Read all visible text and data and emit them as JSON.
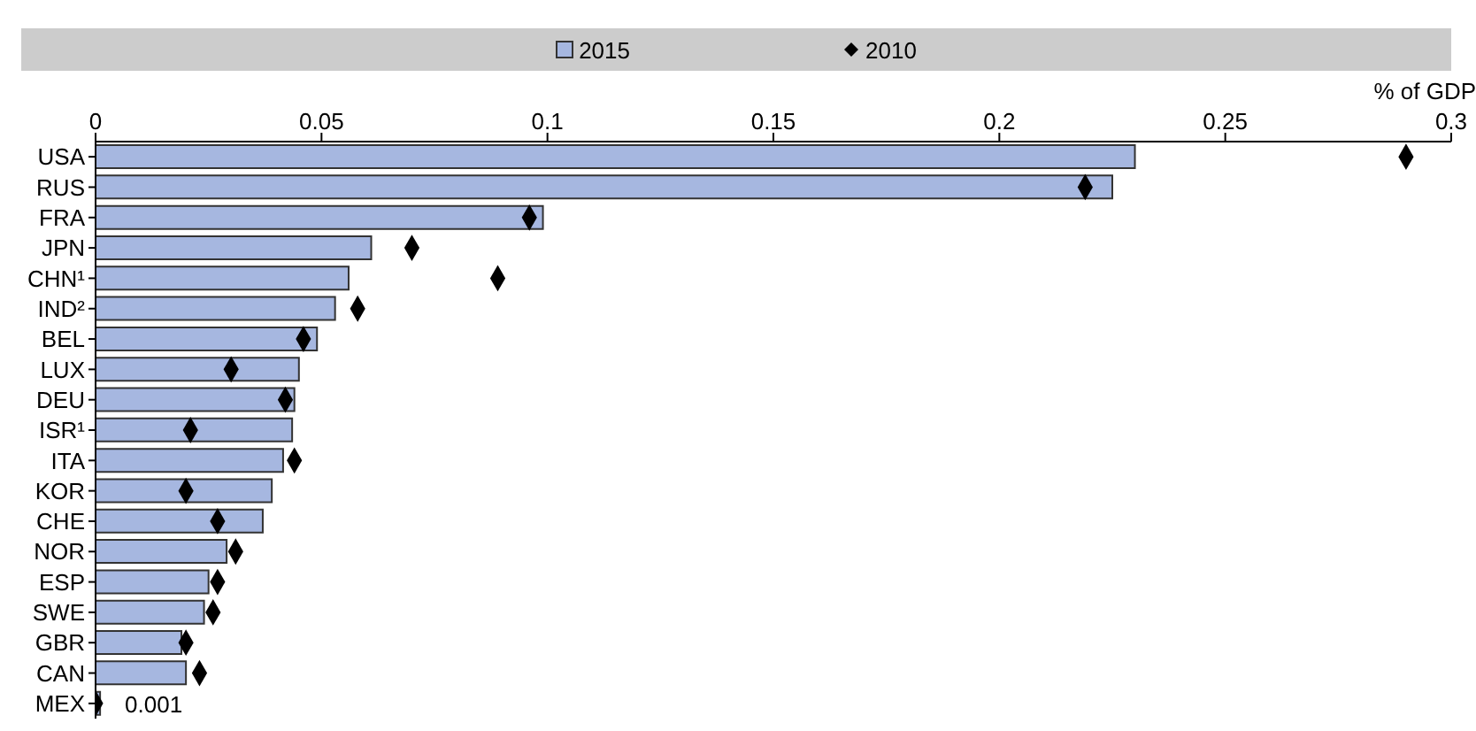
{
  "chart_data": {
    "type": "bar",
    "orientation": "horizontal",
    "xlabel": "% of GDP",
    "categories": [
      "USA",
      "RUS",
      "FRA",
      "JPN",
      "CHN¹",
      "IND²",
      "BEL",
      "LUX",
      "DEU",
      "ISR¹",
      "ITA",
      "KOR",
      "CHE",
      "NOR",
      "ESP",
      "SWE",
      "GBR",
      "CAN",
      "MEX"
    ],
    "series": [
      {
        "name": "2015",
        "color": "#a6b7e0",
        "values": [
          0.23,
          0.225,
          0.099,
          0.061,
          0.056,
          0.053,
          0.049,
          0.045,
          0.044,
          0.0435,
          0.0415,
          0.039,
          0.037,
          0.029,
          0.025,
          0.024,
          0.019,
          0.02,
          0.001
        ],
        "value_labels": [
          null,
          null,
          null,
          null,
          null,
          null,
          null,
          null,
          null,
          null,
          null,
          null,
          null,
          null,
          null,
          null,
          null,
          null,
          "0.001"
        ]
      },
      {
        "name": "2010",
        "type": "scatter",
        "color": "#000000",
        "marker": "diamond",
        "values": [
          0.29,
          0.219,
          0.096,
          0.07,
          0.089,
          0.058,
          0.046,
          0.03,
          0.042,
          0.021,
          0.044,
          0.02,
          0.027,
          0.031,
          0.027,
          0.026,
          0.02,
          0.023,
          0
        ]
      }
    ],
    "xlim": [
      0,
      0.3
    ],
    "xticks": [
      0,
      0.05,
      0.1,
      0.15,
      0.2,
      0.25,
      0.3
    ],
    "legend": "top",
    "grid": false
  }
}
